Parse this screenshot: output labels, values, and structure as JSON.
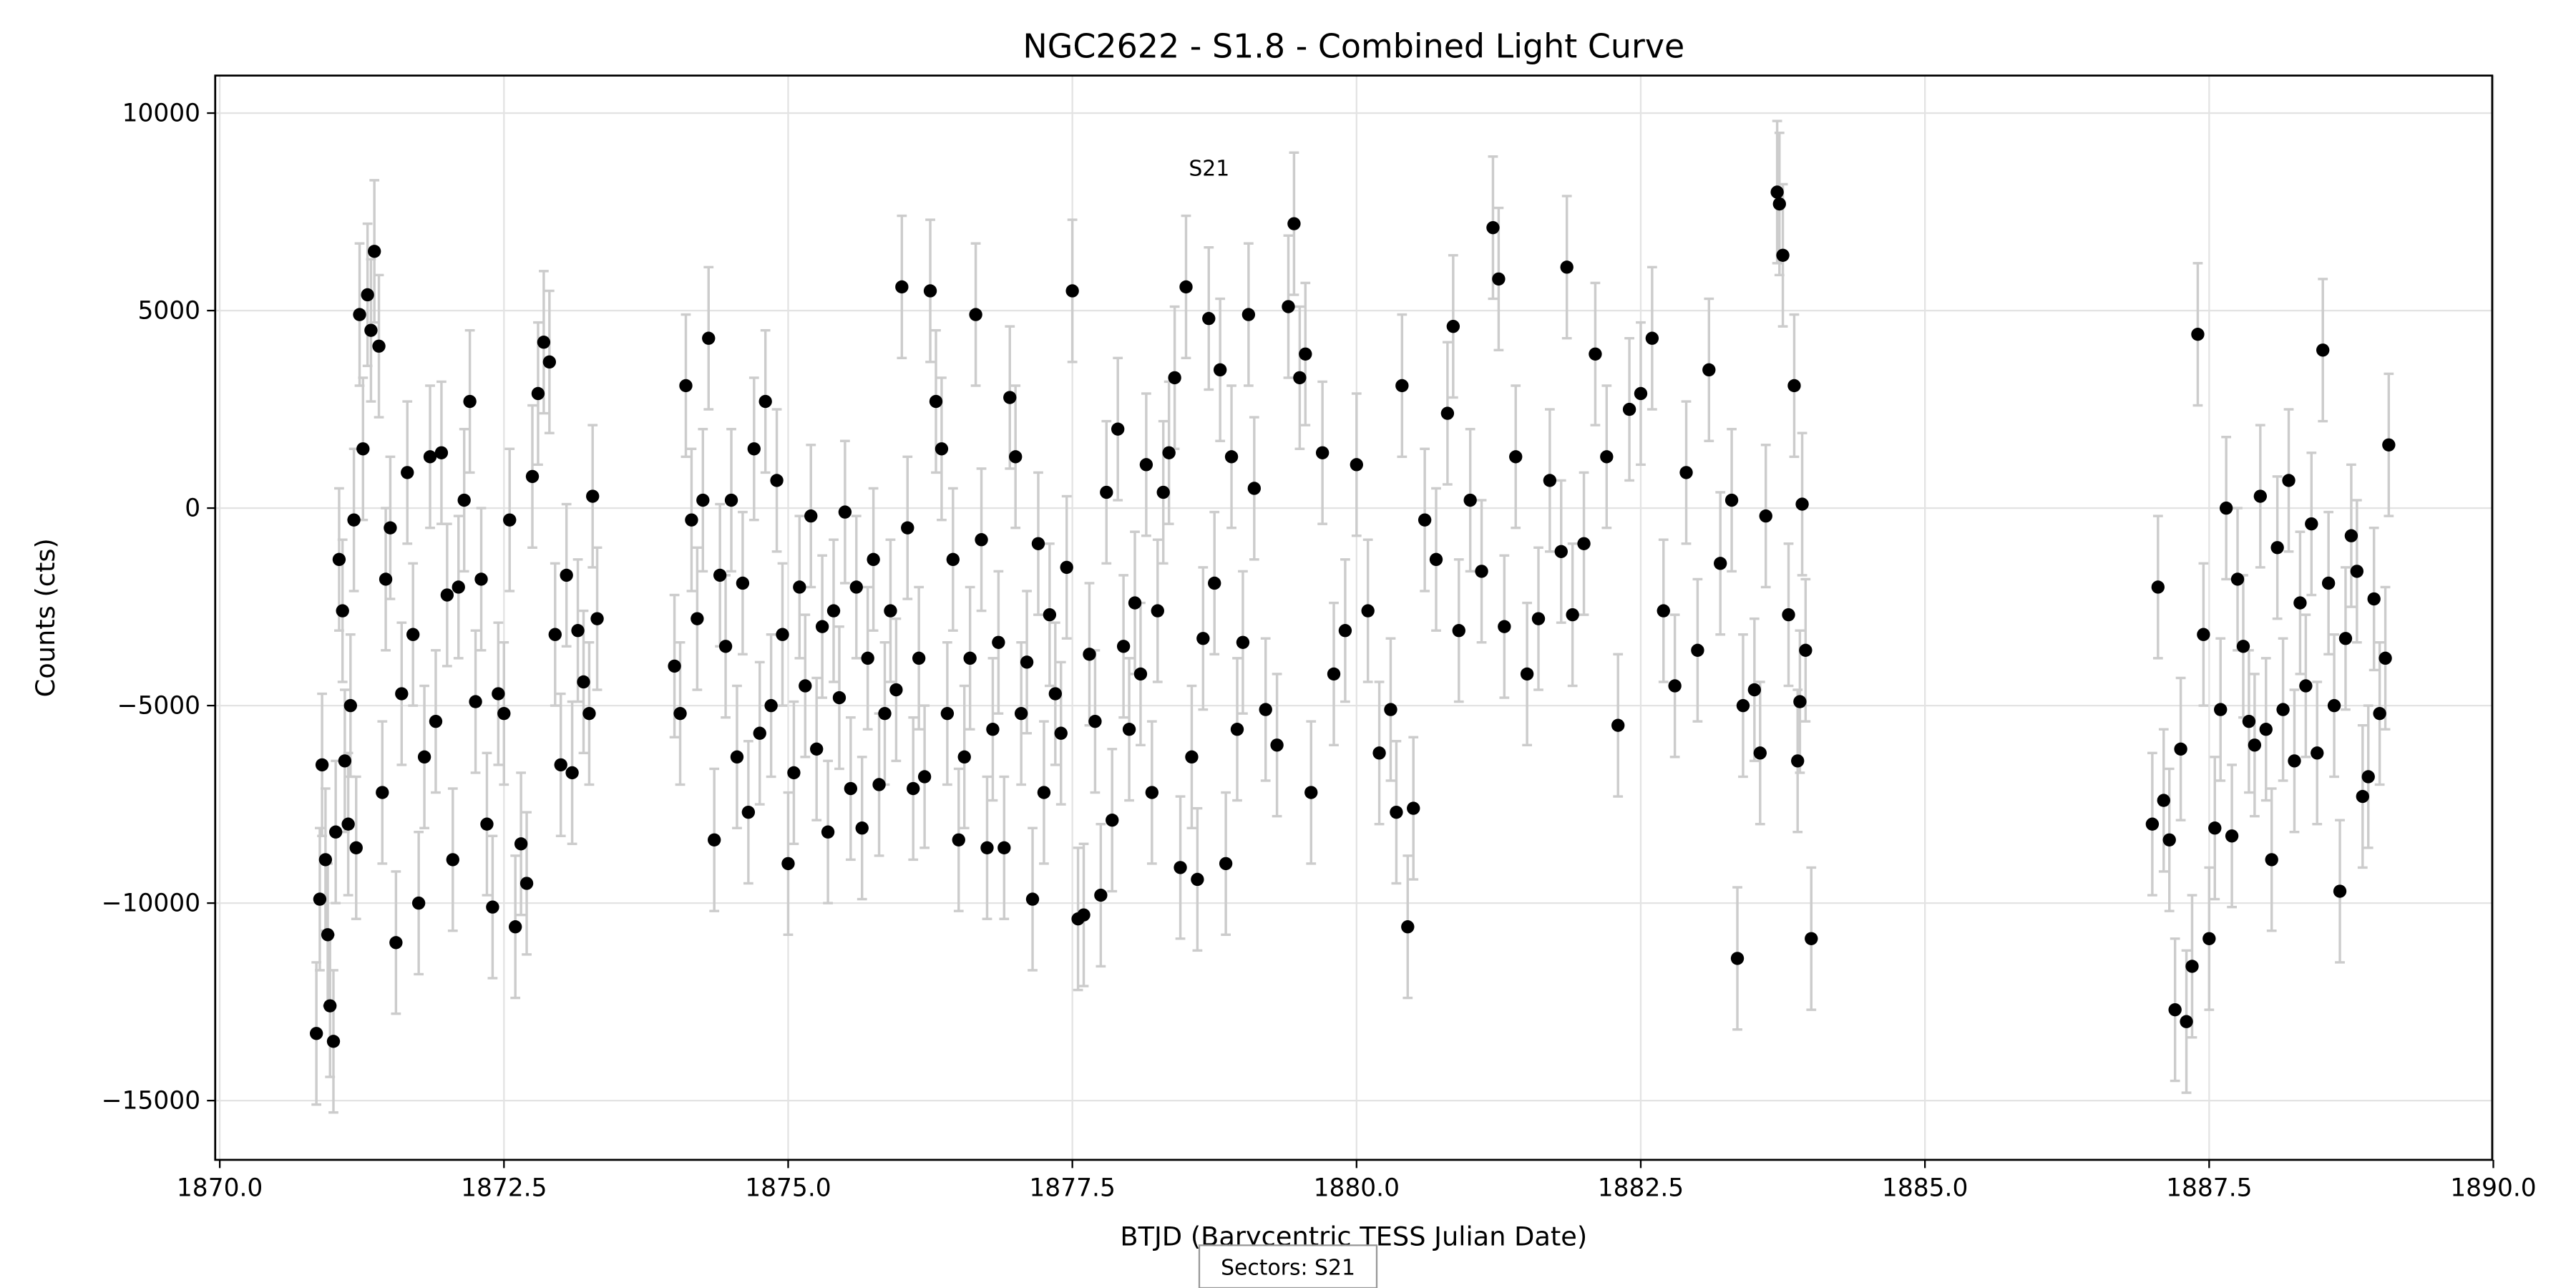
{
  "chart_data": {
    "type": "errorbar",
    "title": "NGC2622 - S1.8 - Combined Light Curve",
    "xlabel": "BTJD (Barycentric TESS Julian Date)",
    "ylabel": "Counts (cts)",
    "annotation": "S21",
    "sectors_label": "Sectors: S21",
    "xlim": [
      1869.96,
      1889.99
    ],
    "ylim": [
      -16500,
      10950
    ],
    "xticks": [
      {
        "value": 1870,
        "label": "1870.0"
      },
      {
        "value": 1872.5,
        "label": "1872.5"
      },
      {
        "value": 1875,
        "label": "1875.0"
      },
      {
        "value": 1877.5,
        "label": "1877.5"
      },
      {
        "value": 1880,
        "label": "1880.0"
      },
      {
        "value": 1882.5,
        "label": "1882.5"
      },
      {
        "value": 1885,
        "label": "1885.0"
      },
      {
        "value": 1887.5,
        "label": "1887.5"
      },
      {
        "value": 1890,
        "label": "1890.0"
      }
    ],
    "yticks": [
      {
        "value": -15000,
        "label": "−15000"
      },
      {
        "value": -10000,
        "label": "−10000"
      },
      {
        "value": -5000,
        "label": "−5000"
      },
      0,
      5000,
      10000
    ],
    "grid": true,
    "series": [
      {
        "color": "#000000",
        "error_color": "#cccccc",
        "yerr": 1800,
        "x": [
          1870.85,
          1870.88,
          1870.9,
          1870.93,
          1870.95,
          1870.97,
          1871.0,
          1871.02,
          1871.05,
          1871.08,
          1871.1,
          1871.13,
          1871.15,
          1871.18,
          1871.2,
          1871.23,
          1871.26,
          1871.3,
          1871.33,
          1871.36,
          1871.4,
          1871.43,
          1871.46,
          1871.5,
          1871.55,
          1871.6,
          1871.65,
          1871.7,
          1871.75,
          1871.8,
          1871.85,
          1871.9,
          1871.95,
          1872.0,
          1872.05,
          1872.1,
          1872.15,
          1872.2,
          1872.25,
          1872.3,
          1872.35,
          1872.4,
          1872.45,
          1872.5,
          1872.55,
          1872.6,
          1872.65,
          1872.7,
          1872.75,
          1872.8,
          1872.85,
          1872.9,
          1872.95,
          1873.0,
          1873.05,
          1873.1,
          1873.15,
          1873.2,
          1873.25,
          1873.28,
          1873.32,
          1874.0,
          1874.05,
          1874.1,
          1874.15,
          1874.2,
          1874.25,
          1874.3,
          1874.35,
          1874.4,
          1874.45,
          1874.5,
          1874.55,
          1874.6,
          1874.65,
          1874.7,
          1874.75,
          1874.8,
          1874.85,
          1874.9,
          1874.95,
          1875.0,
          1875.05,
          1875.1,
          1875.15,
          1875.2,
          1875.25,
          1875.3,
          1875.35,
          1875.4,
          1875.45,
          1875.5,
          1875.55,
          1875.6,
          1875.65,
          1875.7,
          1875.75,
          1875.8,
          1875.85,
          1875.9,
          1875.95,
          1876.0,
          1876.05,
          1876.1,
          1876.15,
          1876.2,
          1876.25,
          1876.3,
          1876.35,
          1876.4,
          1876.45,
          1876.5,
          1876.55,
          1876.6,
          1876.65,
          1876.7,
          1876.75,
          1876.8,
          1876.85,
          1876.9,
          1876.95,
          1877.0,
          1877.05,
          1877.1,
          1877.15,
          1877.2,
          1877.25,
          1877.3,
          1877.35,
          1877.4,
          1877.45,
          1877.5,
          1877.55,
          1877.6,
          1877.65,
          1877.7,
          1877.75,
          1877.8,
          1877.85,
          1877.9,
          1877.95,
          1878.0,
          1878.05,
          1878.1,
          1878.15,
          1878.2,
          1878.25,
          1878.3,
          1878.35,
          1878.4,
          1878.45,
          1878.5,
          1878.55,
          1878.6,
          1878.65,
          1878.7,
          1878.75,
          1878.8,
          1878.85,
          1878.9,
          1878.95,
          1879.0,
          1879.05,
          1879.1,
          1879.2,
          1879.3,
          1879.4,
          1879.45,
          1879.5,
          1879.55,
          1879.6,
          1879.7,
          1879.8,
          1879.9,
          1880.0,
          1880.1,
          1880.2,
          1880.3,
          1880.35,
          1880.4,
          1880.45,
          1880.5,
          1880.6,
          1880.7,
          1880.8,
          1880.85,
          1880.9,
          1881.0,
          1881.1,
          1881.2,
          1881.25,
          1881.3,
          1881.4,
          1881.5,
          1881.6,
          1881.7,
          1881.8,
          1881.85,
          1881.9,
          1882.0,
          1882.1,
          1882.2,
          1882.3,
          1882.4,
          1882.5,
          1882.6,
          1882.7,
          1882.8,
          1882.9,
          1883.0,
          1883.1,
          1883.2,
          1883.3,
          1883.35,
          1883.4,
          1883.5,
          1883.55,
          1883.6,
          1883.7,
          1883.72,
          1883.75,
          1883.8,
          1883.85,
          1883.88,
          1883.9,
          1883.92,
          1883.95,
          1884.0,
          1887.0,
          1887.05,
          1887.1,
          1887.15,
          1887.2,
          1887.25,
          1887.3,
          1887.35,
          1887.4,
          1887.45,
          1887.5,
          1887.55,
          1887.6,
          1887.65,
          1887.7,
          1887.75,
          1887.8,
          1887.85,
          1887.9,
          1887.95,
          1888.0,
          1888.05,
          1888.1,
          1888.15,
          1888.2,
          1888.25,
          1888.3,
          1888.35,
          1888.4,
          1888.45,
          1888.5,
          1888.55,
          1888.6,
          1888.65,
          1888.7,
          1888.75,
          1888.8,
          1888.85,
          1888.9,
          1888.95,
          1889.0,
          1889.05,
          1889.08
        ],
        "values": [
          -13300,
          -9900,
          -6500,
          -8900,
          -10800,
          -12600,
          -13500,
          -8200,
          -1300,
          -2600,
          -6400,
          -8000,
          -5000,
          -300,
          -8600,
          4900,
          1500,
          5400,
          4500,
          6500,
          4100,
          -7200,
          -1800,
          -500,
          -11000,
          -4700,
          900,
          -3200,
          -10000,
          -6300,
          1300,
          -5400,
          1400,
          -2200,
          -8900,
          -2000,
          200,
          2700,
          -4900,
          -1800,
          -8000,
          -10100,
          -4700,
          -5200,
          -300,
          -10600,
          -8500,
          -9500,
          800,
          2900,
          4200,
          3700,
          -3200,
          -6500,
          -1700,
          -6700,
          -3100,
          -4400,
          -5200,
          300,
          -2800,
          -4000,
          -5200,
          3100,
          -300,
          -2800,
          200,
          4300,
          -8400,
          -1700,
          -3500,
          200,
          -6300,
          -1900,
          -7700,
          1500,
          -5700,
          2700,
          -5000,
          700,
          -3200,
          -9000,
          -6700,
          -2000,
          -4500,
          -200,
          -6100,
          -3000,
          -8200,
          -2600,
          -4800,
          -100,
          -7100,
          -2000,
          -8100,
          -3800,
          -1300,
          -7000,
          -5200,
          -2600,
          -4600,
          5600,
          -500,
          -7100,
          -3800,
          -6800,
          5500,
          2700,
          1500,
          -5200,
          -1300,
          -8400,
          -6300,
          -3800,
          4900,
          -800,
          -8600,
          -5600,
          -3400,
          -8600,
          2800,
          1300,
          -5200,
          -3900,
          -9900,
          -900,
          -7200,
          -2700,
          -4700,
          -5700,
          -1500,
          5500,
          -10400,
          -10300,
          -3700,
          -5400,
          -9800,
          400,
          -7900,
          2000,
          -3500,
          -5600,
          -2400,
          -4200,
          1100,
          -7200,
          -2600,
          400,
          1400,
          3300,
          -9100,
          5600,
          -6300,
          -9400,
          -3300,
          4800,
          -1900,
          3500,
          -9000,
          1300,
          -5600,
          -3400,
          4900,
          500,
          -5100,
          -6000,
          5100,
          7200,
          3300,
          3900,
          -7200,
          1400,
          -4200,
          -3100,
          1100,
          -2600,
          -6200,
          -5100,
          -7700,
          3100,
          -10600,
          -7600,
          -300,
          -1300,
          2400,
          4600,
          -3100,
          200,
          -1600,
          7100,
          5800,
          -3000,
          1300,
          -4200,
          -2800,
          700,
          -1100,
          6100,
          -2700,
          -900,
          3900,
          1300,
          -5500,
          2500,
          2900,
          4300,
          -2600,
          -4500,
          900,
          -3600,
          3500,
          -1400,
          200,
          -11400,
          -5000,
          -4600,
          -6200,
          -200,
          8000,
          7700,
          6400,
          -2700,
          3100,
          -6400,
          -4900,
          100,
          -3600,
          -10900,
          -8000,
          -2000,
          -7400,
          -8400,
          -12700,
          -6100,
          -13000,
          -11600,
          4400,
          -3200,
          -10900,
          -8100,
          -5100,
          0,
          -8300,
          -1800,
          -3500,
          -5400,
          -6000,
          300,
          -5600,
          -8900,
          -1000,
          -5100,
          700,
          -6400,
          -2400,
          -4500,
          -400,
          -6200,
          4000,
          -1900,
          -5000,
          -9700,
          -3300,
          -700,
          -1600,
          -7300,
          -6800,
          -2300,
          -5200,
          -3800,
          1600
        ]
      }
    ]
  }
}
